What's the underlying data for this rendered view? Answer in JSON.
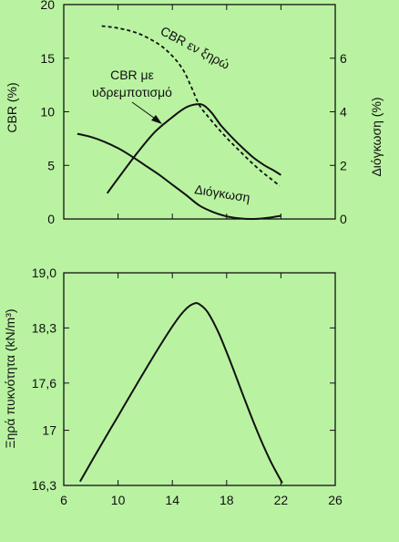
{
  "chart_data": [
    {
      "type": "line",
      "panel": "top",
      "x_axis": {
        "ticks": []
      },
      "y_left": {
        "label": "CBR (%)",
        "lim": [
          0,
          20
        ],
        "ticks": [
          "0",
          "5",
          "10",
          "15",
          "20"
        ]
      },
      "y_right": {
        "label": "Διόγκωση (%)",
        "lim": [
          0,
          8
        ],
        "ticks": [
          "0",
          "2",
          "4",
          "6"
        ]
      },
      "series": [
        {
          "name": "CBR εν ξηρώ",
          "axis": "left",
          "style": "dashed",
          "points": [
            [
              8.8,
              18.0
            ],
            [
              10.0,
              17.8
            ],
            [
              11.5,
              17.3
            ],
            [
              13.0,
              16.3
            ],
            [
              14.0,
              15.2
            ],
            [
              14.8,
              13.9
            ],
            [
              15.4,
              12.3
            ],
            [
              16.0,
              10.6
            ],
            [
              16.6,
              9.6
            ],
            [
              17.4,
              8.4
            ],
            [
              18.2,
              7.3
            ],
            [
              19.0,
              6.3
            ],
            [
              19.8,
              5.3
            ],
            [
              20.6,
              4.4
            ],
            [
              21.3,
              3.7
            ],
            [
              21.9,
              3.1
            ]
          ]
        },
        {
          "name": "CBR με υδρεμποτισμό",
          "axis": "left",
          "style": "solid",
          "points": [
            [
              9.2,
              2.4
            ],
            [
              10.3,
              4.3
            ],
            [
              11.5,
              6.3
            ],
            [
              12.7,
              8.1
            ],
            [
              13.9,
              9.4
            ],
            [
              15.0,
              10.4
            ],
            [
              15.8,
              10.7
            ],
            [
              16.3,
              10.6
            ],
            [
              16.9,
              9.9
            ],
            [
              17.6,
              8.7
            ],
            [
              18.4,
              7.6
            ],
            [
              19.2,
              6.6
            ],
            [
              20.0,
              5.7
            ],
            [
              20.8,
              5.0
            ],
            [
              21.5,
              4.5
            ],
            [
              22.0,
              4.1
            ]
          ]
        },
        {
          "name": "Διόγκωση",
          "axis": "right",
          "style": "solid",
          "points": [
            [
              7.0,
              3.18
            ],
            [
              8.0,
              3.06
            ],
            [
              9.0,
              2.88
            ],
            [
              10.0,
              2.64
            ],
            [
              11.0,
              2.34
            ],
            [
              12.0,
              2.0
            ],
            [
              13.0,
              1.66
            ],
            [
              14.0,
              1.28
            ],
            [
              15.0,
              0.9
            ],
            [
              16.0,
              0.5
            ],
            [
              17.0,
              0.26
            ],
            [
              18.0,
              0.1
            ],
            [
              19.0,
              0.02
            ],
            [
              20.0,
              0.0
            ],
            [
              21.0,
              0.04
            ],
            [
              22.0,
              0.12
            ]
          ]
        }
      ]
    },
    {
      "type": "line",
      "panel": "bottom",
      "x_axis": {
        "lim": [
          6,
          26
        ],
        "ticks": [
          "6",
          "10",
          "14",
          "18",
          "22",
          "26"
        ]
      },
      "y_left": {
        "label": "Ξηρά πυκνότητα (kN/m³)",
        "lim": [
          16.3,
          19.0
        ],
        "ticks": [
          "16,3",
          "17",
          "17,6",
          "18,3",
          "19,0"
        ]
      },
      "series": [
        {
          "name": "",
          "style": "solid",
          "points": [
            [
              7.2,
              16.35
            ],
            [
              8.5,
              16.74
            ],
            [
              10.0,
              17.18
            ],
            [
              11.5,
              17.62
            ],
            [
              13.0,
              18.05
            ],
            [
              14.2,
              18.37
            ],
            [
              15.0,
              18.54
            ],
            [
              15.6,
              18.61
            ],
            [
              16.0,
              18.6
            ],
            [
              16.6,
              18.5
            ],
            [
              17.4,
              18.24
            ],
            [
              18.3,
              17.86
            ],
            [
              19.2,
              17.45
            ],
            [
              20.2,
              17.01
            ],
            [
              21.2,
              16.62
            ],
            [
              22.1,
              16.33
            ]
          ]
        }
      ]
    }
  ],
  "annotations": {
    "dry": "CBR εν ξηρώ",
    "soaked_line1": "CBR με",
    "soaked_line2": "υδρεμποτισμό",
    "swell": "Διόγκωση"
  }
}
